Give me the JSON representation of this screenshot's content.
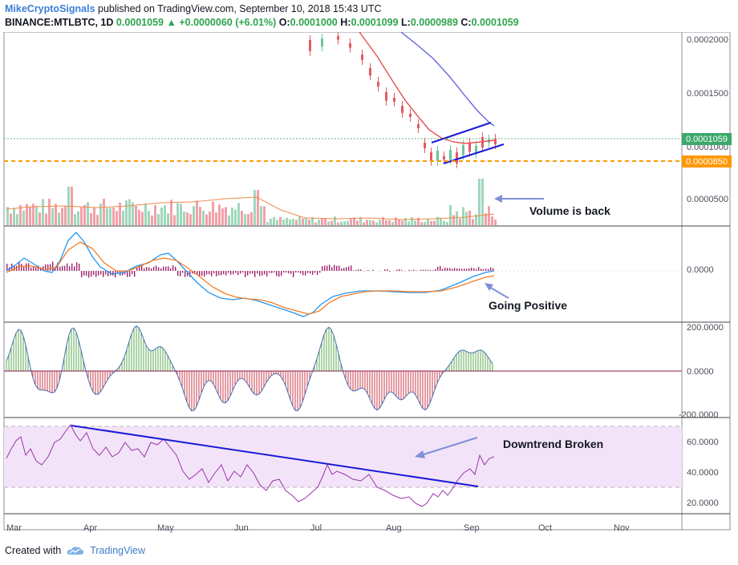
{
  "header": {
    "author": "MikeCryptoSignals",
    "published": "published on TradingView.com, September 10, 2018 15:43 UTC",
    "symbol": "BINANCE:MTLBTC, 1D",
    "price": "0.0001059",
    "arrow": "▲",
    "change": "+0.0000060 (+6.01%)",
    "o_label": "O:",
    "o": "0.0001000",
    "h_label": "H:",
    "h": "0.0001099",
    "l_label": "L:",
    "l": "0.0000989",
    "c_label": "C:",
    "c": "0.0001059"
  },
  "price_axis": [
    "0.0002000",
    "0.0001500",
    "0.0000500"
  ],
  "price_badges": {
    "last": "0.0001059",
    "hidden": "0.0001000",
    "support": "0.0000850"
  },
  "macd_axis": [
    "0.0000"
  ],
  "osc_axis": [
    "200.0000",
    "0.0000",
    "-200.0000"
  ],
  "rsi_axis": [
    "60.0000",
    "40.0000",
    "20.0000"
  ],
  "time_axis": [
    "Mar",
    "Apr",
    "May",
    "Jun",
    "Jul",
    "Aug",
    "Sep",
    "Oct",
    "Nov"
  ],
  "annotations": {
    "volume": "Volume is back",
    "macd": "Going Positive",
    "rsi": "Downtrend Broken"
  },
  "footer": {
    "created": "Created with",
    "brand": "TradingView"
  },
  "colors": {
    "up": "#6cc59a",
    "down": "#e35b64",
    "volume_up": "#9fd7bb",
    "volume_down": "#f3a0a8",
    "ma_fast": "#e84e4e",
    "ma_slow": "#5e5ee0",
    "trendline": "#1a1ad6",
    "support": "#ff9800",
    "macd": "#2196f3",
    "signal": "#f57c22",
    "hist": "#a0226a",
    "rsi": "#9933aa",
    "rsi_band": "#f3e3f8",
    "arrow": "#7f8fd8"
  }
}
